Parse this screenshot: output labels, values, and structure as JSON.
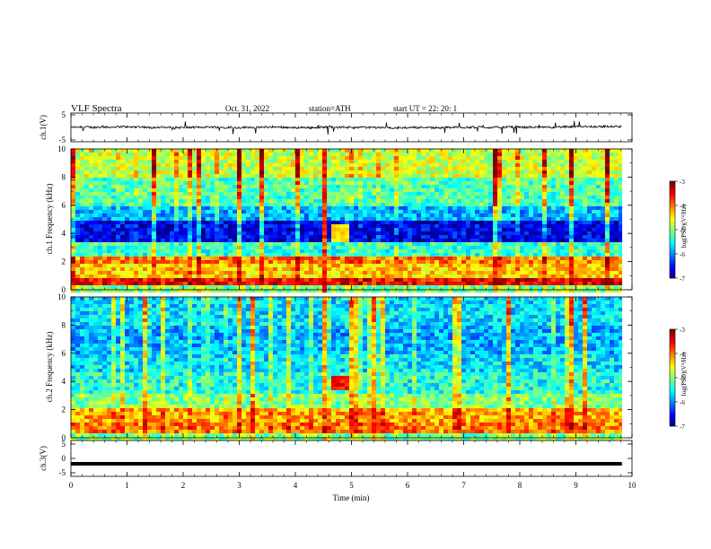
{
  "header": {
    "title": "VLF  Spectra",
    "date": "Oct. 31, 2022",
    "station": "station=ATH",
    "start": "start  UT  =    22: 20: 1"
  },
  "chart_data": [
    {
      "type": "line",
      "panel": "ch1-waveform",
      "ylabel": "ch.1(V)",
      "ylim": [
        -5,
        5
      ],
      "yticks": [
        "5",
        "-5"
      ],
      "xlim": [
        0,
        10
      ],
      "color": "#000000",
      "description_values": {
        "baseline": 0,
        "typical_range": [
          -1,
          1
        ],
        "spike_range": [
          -3,
          3
        ]
      }
    },
    {
      "type": "heatmap",
      "panel": "ch1-spectrogram",
      "ylabel": "ch.1 Frequency  (kHz)",
      "ylim": [
        0,
        10
      ],
      "yticks": [
        "0",
        "2",
        "4",
        "6",
        "8",
        "10"
      ],
      "xlim": [
        0,
        10
      ],
      "colorbar": {
        "label": "log(PSD)(V²/Hz)",
        "range": [
          -7,
          -3
        ],
        "ticks": [
          "-3",
          "-4",
          "-5",
          "-6",
          "-7"
        ]
      },
      "bands": [
        {
          "from": 0.0,
          "to": 0.3,
          "level": -5.0
        },
        {
          "from": 0.3,
          "to": 0.8,
          "level": -3.5
        },
        {
          "from": 0.8,
          "to": 1.8,
          "level": -4.3
        },
        {
          "from": 1.8,
          "to": 2.4,
          "level": -4.0
        },
        {
          "from": 2.4,
          "to": 3.4,
          "level": -5.3
        },
        {
          "from": 3.4,
          "to": 4.8,
          "level": -6.6
        },
        {
          "from": 4.8,
          "to": 6.0,
          "level": -5.8
        },
        {
          "from": 6.0,
          "to": 8.0,
          "level": -5.2
        },
        {
          "from": 8.0,
          "to": 10.0,
          "level": -4.7
        }
      ],
      "event": {
        "t_start": 4.4,
        "t_end": 4.55,
        "level": -3.8
      },
      "patch": {
        "t_start": 4.6,
        "t_end": 4.95,
        "f_start": 3.5,
        "f_end": 4.6,
        "level": -4.4
      }
    },
    {
      "type": "heatmap",
      "panel": "ch2-spectrogram",
      "ylabel": "ch.2 Frequency  (kHz)",
      "ylim": [
        0,
        10
      ],
      "yticks": [
        "0",
        "2",
        "4",
        "6",
        "8",
        "10"
      ],
      "xlim": [
        0,
        10
      ],
      "colorbar": {
        "label": "log(PSD)(V²/Hz)",
        "range": [
          -7,
          -3
        ],
        "ticks": [
          "-3",
          "-4",
          "-5",
          "-6",
          "-7"
        ]
      },
      "bands": [
        {
          "from": 0.0,
          "to": 0.4,
          "level": -5.0
        },
        {
          "from": 0.4,
          "to": 1.0,
          "level": -4.0
        },
        {
          "from": 1.0,
          "to": 2.2,
          "level": -4.2
        },
        {
          "from": 2.2,
          "to": 3.2,
          "level": -5.0
        },
        {
          "from": 3.2,
          "to": 4.6,
          "level": -5.4
        },
        {
          "from": 4.6,
          "to": 6.0,
          "level": -5.6
        },
        {
          "from": 6.0,
          "to": 8.0,
          "level": -5.8
        },
        {
          "from": 8.0,
          "to": 10.0,
          "level": -5.6
        }
      ],
      "event": {
        "t_start": 4.4,
        "t_end": 4.55,
        "level": -4.4
      },
      "patch": {
        "t_start": 4.6,
        "t_end": 4.95,
        "f_start": 3.5,
        "f_end": 4.4,
        "level": -3.6
      }
    },
    {
      "type": "line",
      "panel": "ch3-waveform",
      "ylabel": "ch.3(V)",
      "ylim": [
        -5,
        5
      ],
      "yticks": [
        "5",
        "0",
        "-5"
      ],
      "xlim": [
        0,
        10
      ],
      "xlabel": "Time  (min)",
      "xticks": [
        "0",
        "1",
        "2",
        "3",
        "4",
        "5",
        "6",
        "7",
        "8",
        "9",
        "10"
      ],
      "value": -1.5,
      "color": "#000000"
    }
  ]
}
